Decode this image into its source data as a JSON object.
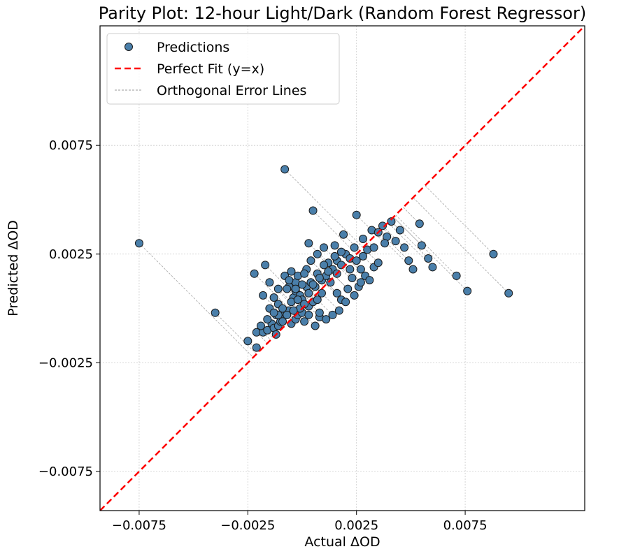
{
  "chart_data": {
    "type": "scatter",
    "title": "Parity Plot: 12-hour Light/Dark (Random Forest Regressor)",
    "xlabel": "Actual ΔOD",
    "ylabel": "Predicted ΔOD",
    "xlim": [
      -0.0093,
      0.013
    ],
    "ylim": [
      -0.0093,
      0.013
    ],
    "xticks": [
      -0.0075,
      -0.0025,
      0.0025,
      0.0075
    ],
    "xtick_labels": [
      "−0.0075",
      "−0.0025",
      "0.0025",
      "0.0075"
    ],
    "yticks": [
      -0.0075,
      -0.0025,
      0.0025,
      0.0075
    ],
    "ytick_labels": [
      "−0.0075",
      "−0.0025",
      "0.0025",
      "0.0075"
    ],
    "grid": true,
    "legend_position": "top-left",
    "legend": [
      "Predictions",
      "Perfect Fit (y=x)",
      "Orthogonal Error Lines"
    ],
    "colors": {
      "points": "#4a7faa",
      "point_edge": "#1a1a1a",
      "perfect_fit": "#ff0000",
      "error_lines": "#9a9a9a",
      "grid": "#cccccc"
    },
    "series": [
      {
        "name": "Predictions",
        "points": [
          [
            -0.0075,
            0.003
          ],
          [
            -0.004,
            -0.0002
          ],
          [
            -0.0025,
            -0.0015
          ],
          [
            -0.0021,
            -0.0018
          ],
          [
            -0.0021,
            -0.0011
          ],
          [
            -0.0018,
            -0.0011
          ],
          [
            -0.0016,
            -0.001
          ],
          [
            -0.0014,
            -0.0007
          ],
          [
            -0.0013,
            -0.0009
          ],
          [
            -0.0012,
            -0.0012
          ],
          [
            -0.0011,
            -0.0008
          ],
          [
            -0.001,
            -0.0006
          ],
          [
            -0.0012,
            -0.0003
          ],
          [
            -0.0009,
            -0.0004
          ],
          [
            -0.0008,
            -0.0002
          ],
          [
            -0.0006,
            -0.0001
          ],
          [
            -0.0005,
            -0.0007
          ],
          [
            -0.0003,
            -0.0005
          ],
          [
            -0.0002,
            -0.0003
          ],
          [
            0.0,
            -0.0002
          ],
          [
            0.0001,
            -0.0006
          ],
          [
            -0.0001,
            0.0
          ],
          [
            0.0003,
            0.0001
          ],
          [
            0.0005,
            0.0003
          ],
          [
            0.0007,
            0.0004
          ],
          [
            0.0008,
            -0.0004
          ],
          [
            -0.0004,
            0.0005
          ],
          [
            -0.0003,
            0.0012
          ],
          [
            -0.0005,
            0.0017
          ],
          [
            -0.0006,
            0.001
          ],
          [
            -0.0008,
            0.0015
          ],
          [
            -0.0011,
            0.0009
          ],
          [
            -0.0015,
            0.0012
          ],
          [
            -0.0017,
            0.002
          ],
          [
            -0.0022,
            0.0016
          ],
          [
            -0.0018,
            0.0006
          ],
          [
            -0.0013,
            0.0005
          ],
          [
            -0.0015,
            0.0
          ],
          [
            -0.0011,
            0.0002
          ],
          [
            -0.0009,
            0.0
          ],
          [
            -0.0007,
            0.0009
          ],
          [
            -0.0005,
            0.0003
          ],
          [
            -0.0003,
            0.0008
          ],
          [
            -0.0001,
            0.0006
          ],
          [
            0.0,
            0.0004
          ],
          [
            0.0002,
            0.001
          ],
          [
            0.0003,
            0.0007
          ],
          [
            0.0004,
            0.0012
          ],
          [
            0.0006,
            0.001
          ],
          [
            0.0007,
            0.0016
          ],
          [
            0.0009,
            0.0013
          ],
          [
            0.0011,
            0.0015
          ],
          [
            0.0012,
            0.0021
          ],
          [
            0.0014,
            0.0018
          ],
          [
            0.0016,
            0.0022
          ],
          [
            0.0018,
            0.002
          ],
          [
            0.002,
            0.0025
          ],
          [
            0.0022,
            0.0023
          ],
          [
            0.0024,
            0.0028
          ],
          [
            0.0025,
            0.0022
          ],
          [
            0.0027,
            0.0018
          ],
          [
            0.0029,
            0.0015
          ],
          [
            0.0031,
            0.0013
          ],
          [
            0.0033,
            0.0019
          ],
          [
            0.0035,
            0.0021
          ],
          [
            0.003,
            0.0027
          ],
          [
            0.0028,
            0.0032
          ],
          [
            0.0032,
            0.0036
          ],
          [
            0.0035,
            0.0035
          ],
          [
            0.0037,
            0.0038
          ],
          [
            0.0039,
            0.0033
          ],
          [
            0.0041,
            0.004
          ],
          [
            0.0043,
            0.0031
          ],
          [
            0.0045,
            0.0036
          ],
          [
            0.0047,
            0.0028
          ],
          [
            0.0049,
            0.0022
          ],
          [
            0.0051,
            0.0018
          ],
          [
            0.0054,
            0.0039
          ],
          [
            0.0055,
            0.0029
          ],
          [
            0.0058,
            0.0023
          ],
          [
            0.006,
            0.0019
          ],
          [
            0.0071,
            0.0015
          ],
          [
            0.0076,
            0.0008
          ],
          [
            0.0088,
            0.0025
          ],
          [
            0.0095,
            0.0007
          ],
          [
            -0.0008,
            0.0064
          ],
          [
            0.0005,
            0.0045
          ],
          [
            0.0003,
            0.003
          ],
          [
            0.0007,
            0.0025
          ],
          [
            0.001,
            0.0028
          ],
          [
            0.0015,
            0.0029
          ],
          [
            0.0019,
            0.0034
          ],
          [
            0.0025,
            0.0043
          ],
          [
            0.0002,
            0.0018
          ],
          [
            0.0004,
            0.0022
          ],
          [
            0.001,
            0.002
          ],
          [
            0.0013,
            0.0012
          ],
          [
            0.0016,
            0.0007
          ],
          [
            0.0018,
            0.0004
          ],
          [
            0.0021,
            0.0009
          ],
          [
            0.0023,
            0.0014
          ],
          [
            0.0026,
            0.001
          ],
          [
            0.0024,
            0.0006
          ],
          [
            0.002,
            0.0003
          ],
          [
            0.0017,
            -0.0001
          ],
          [
            0.0014,
            -0.0003
          ],
          [
            0.0011,
            -0.0005
          ],
          [
            0.0008,
            -0.0002
          ],
          [
            0.0006,
            -0.0008
          ],
          [
            0.0003,
            -0.0003
          ],
          [
            0.0001,
            0.0002
          ],
          [
            -0.0002,
            0.0004
          ],
          [
            -0.0004,
            -0.0001
          ],
          [
            -0.0007,
            -0.0003
          ],
          [
            -0.0009,
            -0.0006
          ],
          [
            -0.0011,
            -0.0003
          ],
          [
            -0.0013,
            -0.0002
          ],
          [
            -0.0016,
            -0.0005
          ],
          [
            -0.0019,
            -0.0008
          ],
          [
            -0.0006,
            0.0013
          ],
          [
            -0.0002,
            0.0015
          ],
          [
            0.0001,
            0.0016
          ],
          [
            0.0008,
            0.0014
          ],
          [
            0.0012,
            0.0017
          ],
          [
            0.0015,
            0.0024
          ],
          [
            0.0018,
            0.0026
          ],
          [
            0.0022,
            0.0018
          ],
          [
            0.0028,
            0.0024
          ],
          [
            0.0033,
            0.0028
          ],
          [
            0.0038,
            0.003
          ],
          [
            0.0027,
            0.0012
          ],
          [
            0.0016,
            0.0016
          ],
          [
            0.0009,
            0.0007
          ],
          [
            0.0005,
            0.0011
          ],
          [
            -0.0003,
            0.0009
          ],
          [
            0.0,
            0.0011
          ]
        ]
      }
    ]
  }
}
